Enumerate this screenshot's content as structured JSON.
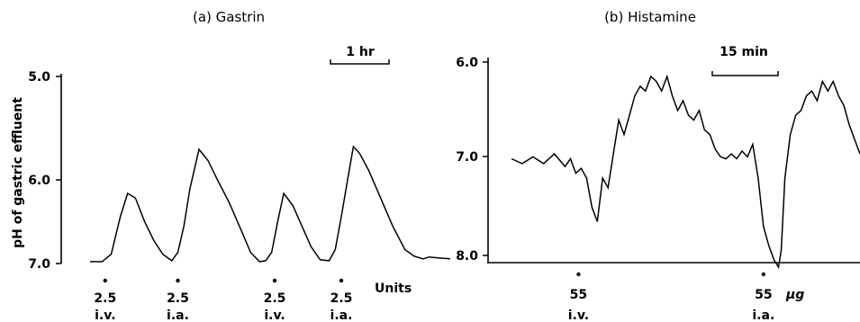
{
  "chart_data": [
    {
      "type": "line",
      "title": "(a) Gastrin",
      "ylabel": "pH of gastric effluent",
      "ylim": [
        7.0,
        5.0
      ],
      "y_axis": "reversed",
      "yticks": [
        "5.0",
        "6.0",
        "7.0"
      ],
      "time_scale_label": "1 hr",
      "units_label": "Units",
      "doses": [
        {
          "t": 0.25,
          "dose": "2.5",
          "route": "i.v."
        },
        {
          "t": 1.45,
          "dose": "2.5",
          "route": "i.a."
        },
        {
          "t": 3.05,
          "dose": "2.5",
          "route": "i.v."
        },
        {
          "t": 4.15,
          "dose": "2.5",
          "route": "i.a."
        }
      ],
      "series": [
        {
          "x": [
            0.0,
            0.2,
            0.35,
            0.5,
            0.62,
            0.75,
            0.9,
            1.05,
            1.2,
            1.35,
            1.45,
            1.55,
            1.65,
            1.8,
            1.95,
            2.1,
            2.3,
            2.5,
            2.65,
            2.8,
            2.9,
            3.0,
            3.1,
            3.2,
            3.35,
            3.5,
            3.65,
            3.8,
            3.95,
            4.05,
            4.15,
            4.25,
            4.35,
            4.45,
            4.6,
            4.8,
            5.0,
            5.2,
            5.35,
            5.5,
            5.6,
            5.75,
            5.95
          ],
          "y": [
            6.98,
            6.98,
            6.9,
            6.5,
            6.25,
            6.3,
            6.55,
            6.75,
            6.9,
            6.97,
            6.88,
            6.6,
            6.2,
            5.78,
            5.9,
            6.1,
            6.35,
            6.65,
            6.88,
            6.98,
            6.97,
            6.88,
            6.55,
            6.25,
            6.38,
            6.6,
            6.82,
            6.96,
            6.97,
            6.85,
            6.5,
            6.12,
            5.75,
            5.82,
            6.0,
            6.3,
            6.6,
            6.85,
            6.92,
            6.95,
            6.93,
            6.94,
            6.95
          ]
        }
      ]
    },
    {
      "type": "line",
      "title": "(b) Histamine",
      "ylim": [
        8.0,
        6.0
      ],
      "y_axis": "reversed",
      "yticks": [
        "6.0",
        "7.0",
        "8.0"
      ],
      "time_scale_label": "15 min",
      "units_label": "µg",
      "doses": [
        {
          "t": 12.5,
          "dose": "55",
          "route": "i.v."
        },
        {
          "t": 47.0,
          "dose": "55",
          "route": "i.a."
        }
      ],
      "series": [
        {
          "x": [
            0,
            2,
            4,
            6,
            8,
            10,
            11,
            12,
            13,
            14,
            15,
            16,
            17,
            18,
            19,
            20,
            21,
            22,
            23,
            24,
            25,
            26,
            27,
            28,
            29,
            30,
            31,
            32,
            33,
            34,
            35,
            36,
            37,
            38,
            39,
            40,
            41,
            42,
            43,
            44,
            45,
            46,
            47,
            48,
            49,
            49.8,
            50.3,
            51,
            52,
            53,
            54,
            55,
            56,
            57,
            58,
            59,
            60,
            61,
            62,
            63,
            64,
            65
          ],
          "y": [
            7.0,
            7.05,
            6.98,
            7.05,
            6.95,
            7.08,
            7.0,
            7.15,
            7.1,
            7.2,
            7.5,
            7.65,
            7.2,
            7.3,
            6.95,
            6.6,
            6.75,
            6.55,
            6.35,
            6.25,
            6.3,
            6.15,
            6.2,
            6.3,
            6.15,
            6.35,
            6.5,
            6.4,
            6.55,
            6.6,
            6.5,
            6.7,
            6.75,
            6.9,
            6.98,
            7.0,
            6.95,
            7.0,
            6.92,
            6.98,
            6.85,
            7.2,
            7.7,
            7.9,
            8.05,
            8.12,
            7.95,
            7.2,
            6.75,
            6.55,
            6.5,
            6.35,
            6.3,
            6.4,
            6.2,
            6.3,
            6.2,
            6.35,
            6.45,
            6.65,
            6.8,
            6.95
          ]
        }
      ]
    }
  ]
}
